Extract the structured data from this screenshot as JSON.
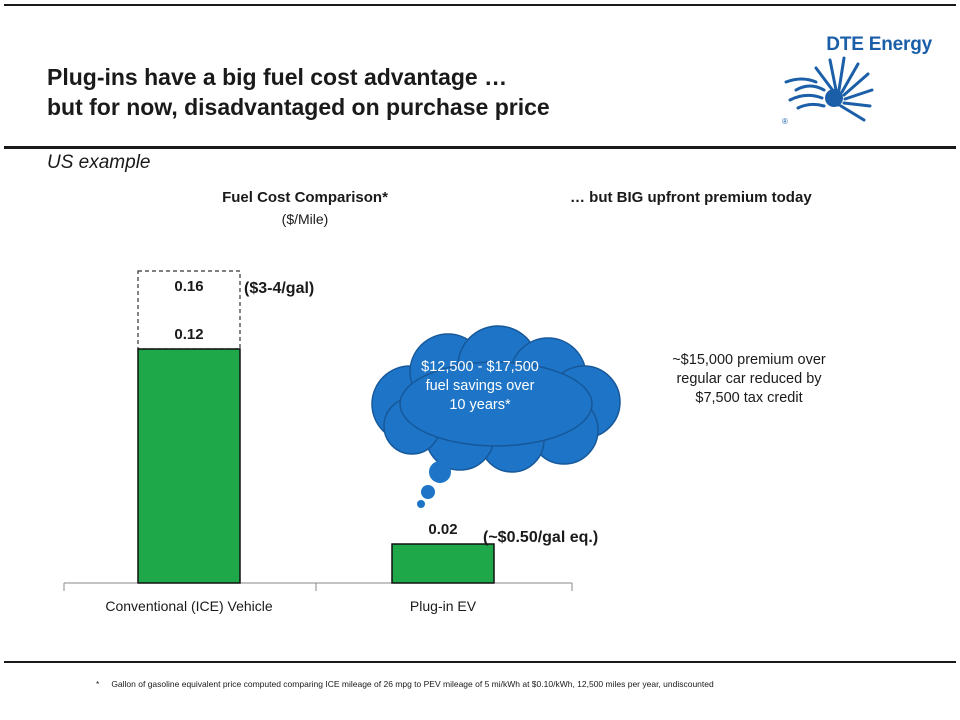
{
  "slide": {
    "title_line1": "Plug-ins have a big fuel cost advantage …",
    "title_line2": "but for now, disadvantaged on purchase price",
    "subtitle": "US example",
    "logo_text": "DTE Energy",
    "logo_mark": "®"
  },
  "chart_data": {
    "type": "bar",
    "title": "Fuel Cost Comparison*",
    "subtitle": "($/Mile)",
    "categories": [
      "Conventional (ICE) Vehicle",
      "Plug-in EV"
    ],
    "series": [
      {
        "values": [
          0.12,
          0.02
        ],
        "color": "#1fa84a"
      }
    ],
    "upper_range": {
      "category": "Conventional (ICE) Vehicle",
      "value": 0.16,
      "style": "dashed outline"
    },
    "data_labels": [
      "0.12",
      "0.02"
    ],
    "upper_label": "0.16",
    "annotations": {
      "ice": "($3-4/gal)",
      "ev": "(~$0.50/gal eq.)"
    },
    "ylim": [
      0,
      0.18
    ],
    "grid": false,
    "legend": "none"
  },
  "cloud": {
    "line1": "$12,500 - $17,500",
    "line2": "fuel savings over",
    "line3": "10 years*",
    "color": "#1e74c6"
  },
  "right_panel": {
    "heading": "…   but BIG upfront premium today",
    "line1": "~$15,000 premium over",
    "line2": "regular car reduced by",
    "line3": "$7,500 tax credit"
  },
  "footnote": {
    "mark": "*",
    "text": "Gallon of gasoline equivalent price computed comparing ICE mileage of 26 mpg to PEV mileage of 5 mi/kWh at $0.10/kWh, 12,500 miles per year, undiscounted"
  },
  "colors": {
    "bar_green": "#1fa84a",
    "cloud_blue": "#1e74c6",
    "brand_blue": "#1b5fa8"
  }
}
